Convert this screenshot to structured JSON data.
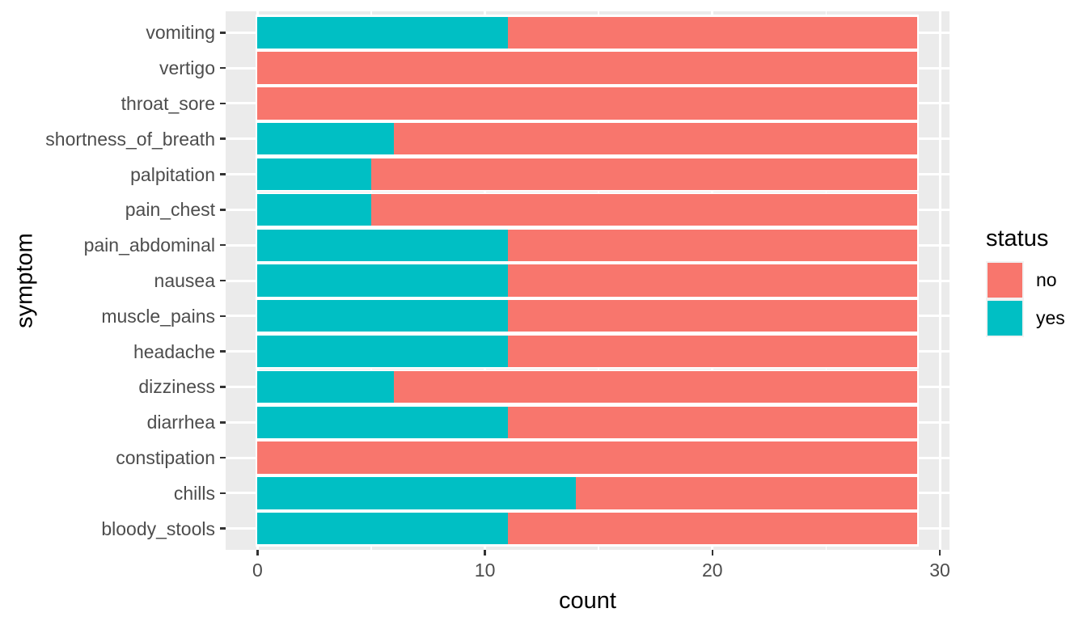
{
  "figure": {
    "background": "#FFFFFF"
  },
  "panel": {
    "background": "#EBEBEB",
    "gridline_color": "#FFFFFF",
    "tick_mark_color": "#333333",
    "tick_label_color": "#4D4D4D",
    "title_color": "#000000"
  },
  "axes": {
    "x": {
      "title": "count",
      "tick_labels": [
        "0",
        "10",
        "20",
        "30"
      ],
      "tick_values": [
        0,
        10,
        20,
        30
      ],
      "minor_tick_values": [
        5,
        15,
        25
      ],
      "limits": [
        -1.45,
        30.45
      ]
    },
    "y": {
      "title": "symptom"
    }
  },
  "legend": {
    "title": "status",
    "entries": [
      {
        "label": "no",
        "color": "#F8766D"
      },
      {
        "label": "yes",
        "color": "#00BFC4"
      }
    ]
  },
  "chart_data": {
    "type": "bar",
    "orientation": "horizontal",
    "stacking": "stacked",
    "title": "",
    "xlabel": "count",
    "ylabel": "symptom",
    "xlim": [
      0,
      30
    ],
    "x_ticks": [
      0,
      10,
      20,
      30
    ],
    "grid": true,
    "legend_position": "right",
    "stack_total": 29,
    "categories": [
      "vomiting",
      "vertigo",
      "throat_sore",
      "shortness_of_breath",
      "palpitation",
      "pain_chest",
      "pain_abdominal",
      "nausea",
      "muscle_pains",
      "headache",
      "dizziness",
      "diarrhea",
      "constipation",
      "chills",
      "bloody_stools"
    ],
    "series": [
      {
        "name": "yes",
        "color": "#00BFC4",
        "values": [
          11,
          0,
          0,
          6,
          5,
          5,
          11,
          11,
          11,
          11,
          6,
          11,
          0,
          14,
          11
        ]
      },
      {
        "name": "no",
        "color": "#F8766D",
        "values": [
          18,
          29,
          29,
          23,
          24,
          24,
          18,
          18,
          18,
          18,
          23,
          18,
          29,
          15,
          18
        ]
      }
    ]
  }
}
